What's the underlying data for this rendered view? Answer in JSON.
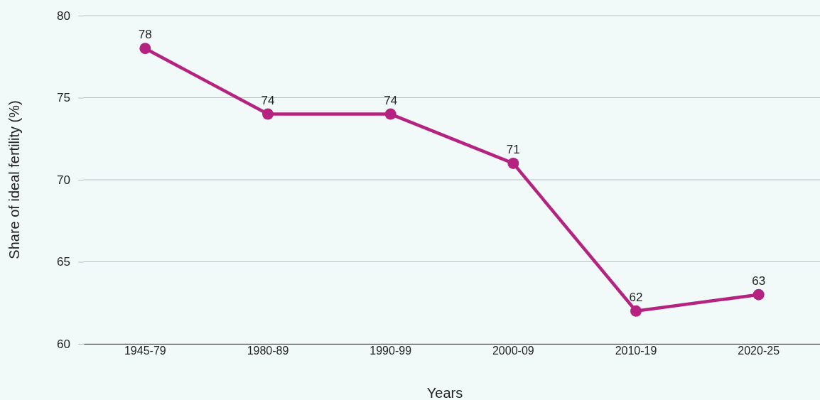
{
  "chart_data": {
    "type": "line",
    "xlabel": "Years",
    "ylabel": "Share of ideal fertility (%)",
    "categories": [
      "1945-79",
      "1980-89",
      "1990-99",
      "2000-09",
      "2010-19",
      "2020-25"
    ],
    "series": [
      {
        "color": "#b5227f",
        "values": [
          78,
          74,
          74,
          71,
          62,
          63
        ]
      }
    ],
    "ylim": [
      60,
      80
    ],
    "yticks": [
      60,
      65,
      70,
      75,
      80
    ],
    "grid": "y",
    "marker": "circle",
    "data_labels": true
  }
}
